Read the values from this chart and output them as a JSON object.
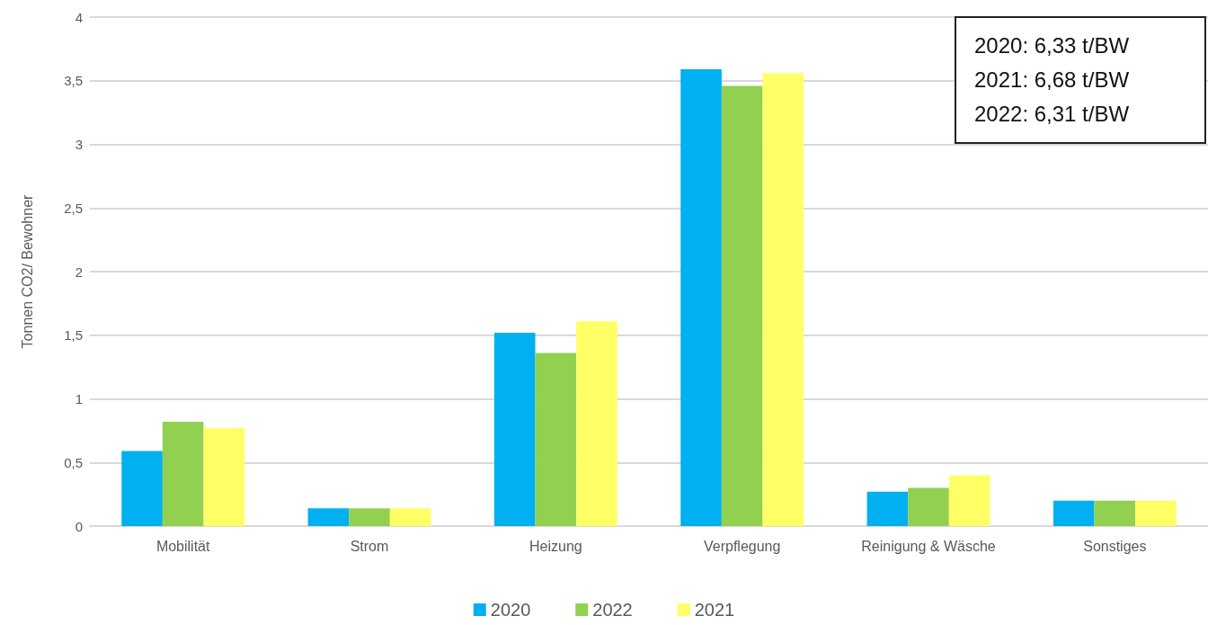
{
  "chart_data": {
    "type": "bar",
    "ylabel": "Tonnen CO2/ Bewohner",
    "categories": [
      "Mobilität",
      "Strom",
      "Heizung",
      "Verpflegung",
      "Reinigung & Wäsche",
      "Sonstiges"
    ],
    "series": [
      {
        "name": "2020",
        "color": "#00b0f0",
        "values": [
          0.59,
          0.14,
          1.52,
          3.59,
          0.27,
          0.2
        ]
      },
      {
        "name": "2022",
        "color": "#92d050",
        "values": [
          0.82,
          0.14,
          1.36,
          3.46,
          0.3,
          0.2
        ]
      },
      {
        "name": "2021",
        "color": "#ffff66",
        "values": [
          0.77,
          0.14,
          1.61,
          3.56,
          0.4,
          0.2
        ]
      }
    ],
    "ylim": [
      0,
      4
    ],
    "yticks": [
      0,
      {
        "value": 0.5,
        "label": "0,5"
      },
      1,
      {
        "value": 1.5,
        "label": "1,5"
      },
      2,
      {
        "value": 2.5,
        "label": "2,5"
      },
      3,
      {
        "value": 3.5,
        "label": "3,5"
      },
      4
    ],
    "annotations": [
      "2020: 6,33 t/BW",
      "2021: 6,68 t/BW",
      "2022: 6,31 t/BW"
    ],
    "grid": "y",
    "legend": "bottom"
  }
}
